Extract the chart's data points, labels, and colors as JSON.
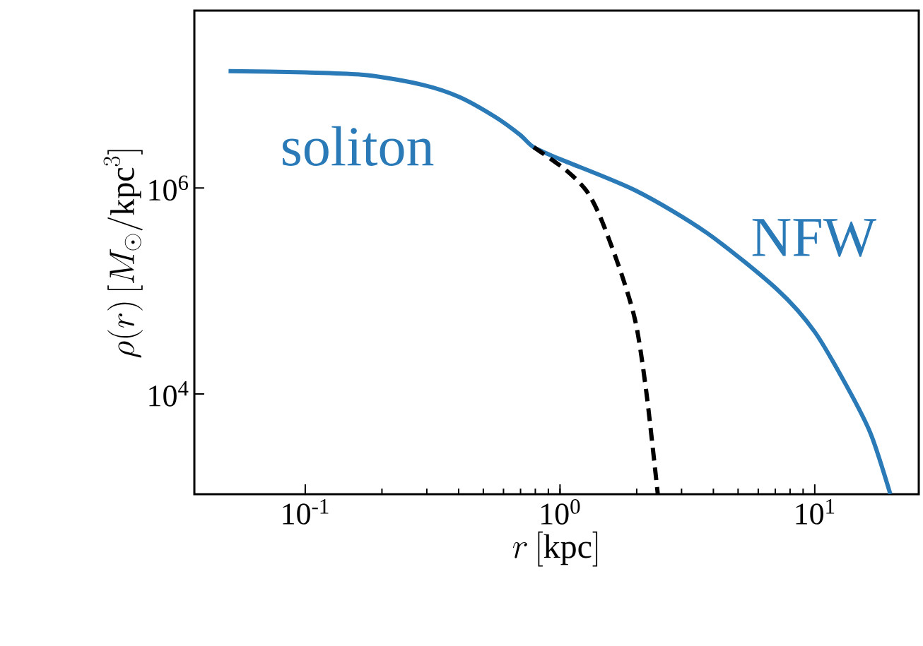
{
  "chart_data": {
    "type": "line",
    "xlabel": "r\\,[\\mathrm{kpc}]",
    "ylabel": "\\rho(r)\\,[M_\\odot/\\mathrm{kpc}^3]",
    "log": "xy",
    "xlim": [
      0.0367,
      25.6
    ],
    "ylim": [
      1060,
      53000000
    ],
    "xticks": [
      {
        "value": 0.1,
        "label": "10$^{-1}$"
      },
      {
        "value": 1,
        "label": "10$^{0}$"
      },
      {
        "value": 10,
        "label": "10$^{1}$"
      }
    ],
    "yticks": [
      {
        "value": 10000,
        "label": "10$^{4}$"
      },
      {
        "value": 1000000,
        "label": "10$^{6}$"
      }
    ],
    "series": [
      {
        "color": "#2a7ab8",
        "line_style": "solid",
        "x": [
          0.05,
          0.1,
          0.175,
          0.292,
          0.403,
          0.556,
          0.695,
          0.789,
          1,
          1.99,
          3.78,
          7.13,
          10,
          13.5,
          16.6,
          19.8
        ],
        "values": [
          13700000,
          13300000,
          12500000,
          10000000,
          7660000,
          4920000,
          3310000,
          2490000,
          1910000,
          940000,
          365000,
          103000,
          40000,
          11300,
          4070,
          1064
        ]
      },
      {
        "color": "#000000",
        "line_style": "dashed",
        "x": [
          0.789,
          1.05,
          1.27,
          1.45,
          1.75,
          1.99,
          2.19,
          2.42
        ],
        "values": [
          2490000,
          1510000,
          940000,
          500000,
          142000,
          46900,
          9700,
          1064
        ]
      }
    ],
    "annotations": [
      "soliton",
      "NFW"
    ]
  }
}
